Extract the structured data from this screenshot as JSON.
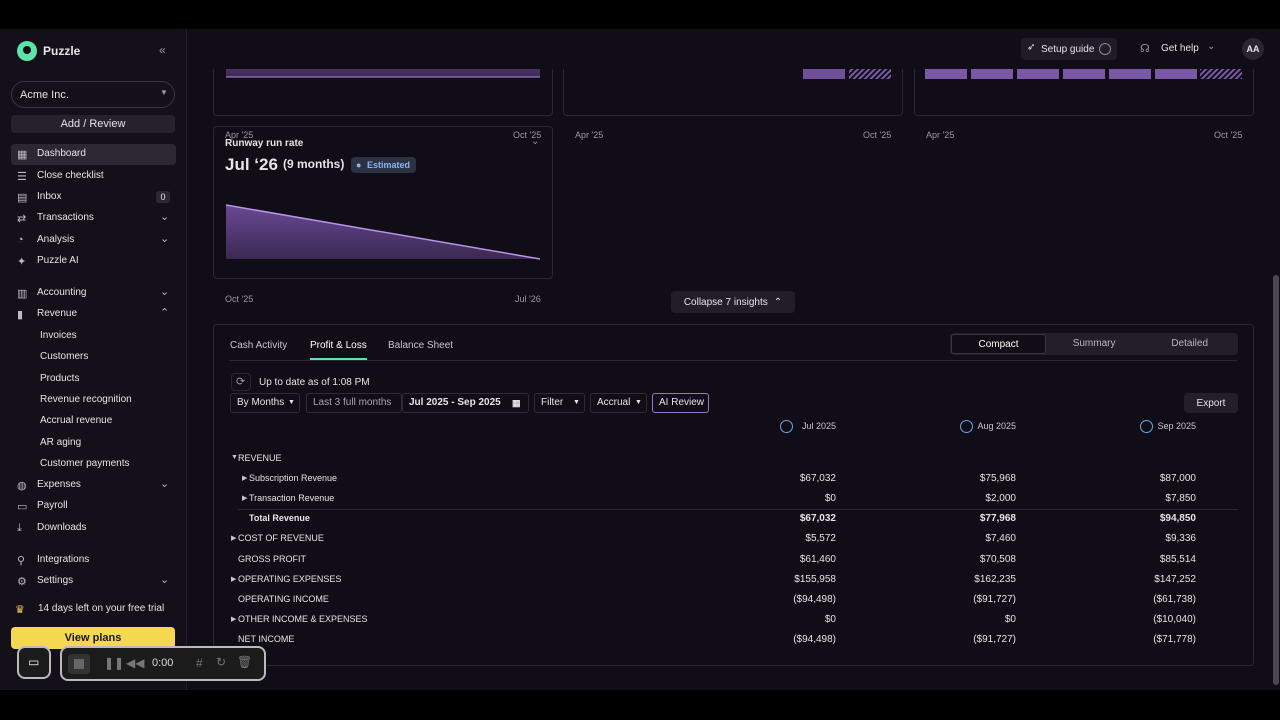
{
  "sidebar": {
    "brand": "Puzzle",
    "company": "Acme Inc.",
    "add_review": "Add / Review",
    "nav": [
      {
        "label": "Dashboard"
      },
      {
        "label": "Close checklist"
      },
      {
        "label": "Inbox",
        "badge": "0"
      },
      {
        "label": "Transactions"
      },
      {
        "label": "Analysis"
      },
      {
        "label": "Puzzle AI"
      },
      {
        "label": "Accounting"
      },
      {
        "label": "Revenue",
        "children": [
          "Invoices",
          "Customers",
          "Products",
          "Revenue recognition",
          "Accrual revenue",
          "AR aging",
          "Customer payments"
        ]
      },
      {
        "label": "Expenses"
      },
      {
        "label": "Payroll"
      },
      {
        "label": "Downloads"
      },
      {
        "label": "Integrations"
      },
      {
        "label": "Settings"
      }
    ],
    "trial": "14 days left on your free trial",
    "view_plans": "View plans"
  },
  "topbar": {
    "setup_guide": "Setup guide",
    "get_help": "Get help",
    "avatar": "AA"
  },
  "cards": [
    {
      "axis": [
        "Apr '25",
        "Oct '25"
      ]
    },
    {
      "axis": [
        "Apr '25",
        "Oct '25"
      ]
    },
    {
      "axis": [
        "Apr '25",
        "Oct '25"
      ]
    }
  ],
  "runway": {
    "title": "Runway run rate",
    "value": "Jul ‘26",
    "detail": "(9 months)",
    "badge": "Estimated",
    "axis": [
      "Oct '25",
      "Jul '26"
    ]
  },
  "collapse": "Collapse 7 insights",
  "report": {
    "tabs": [
      "Cash Activity",
      "Profit & Loss",
      "Balance Sheet"
    ],
    "views": [
      "Compact",
      "Summary",
      "Detailed"
    ],
    "status": "Up to date as of 1:08 PM",
    "toolbar": [
      "By Months",
      "Last 3 full months",
      "Jul 2025 - Sep 2025",
      "Filter",
      "Accrual",
      "AI Review"
    ],
    "export": "Export",
    "columns": [
      "Jul 2025",
      "Aug 2025",
      "Sep 2025"
    ],
    "sections": [
      {
        "label": "REVENUE",
        "rows": [
          {
            "label": "Subscription Revenue",
            "values": [
              "$67,032",
              "$75,968",
              "$87,000"
            ]
          },
          {
            "label": "Transaction Revenue",
            "values": [
              "$0",
              "$2,000",
              "$7,850"
            ]
          },
          {
            "label": "Total Revenue",
            "values": [
              "$67,032",
              "$77,968",
              "$94,850"
            ]
          }
        ]
      },
      {
        "label": "COST OF REVENUE",
        "values": [
          "$5,572",
          "$7,460",
          "$9,336"
        ]
      },
      {
        "label": "GROSS PROFIT",
        "values": [
          "$61,460",
          "$70,508",
          "$85,514"
        ]
      },
      {
        "label": "OPERATING EXPENSES",
        "values": [
          "$155,958",
          "$162,235",
          "$147,252"
        ]
      },
      {
        "label": "OPERATING INCOME",
        "values": [
          "($94,498)",
          "($91,727)",
          "($61,738)"
        ]
      },
      {
        "label": "OTHER INCOME & EXPENSES",
        "values": [
          "$0",
          "$0",
          "($10,040)"
        ]
      },
      {
        "label": "NET INCOME",
        "values": [
          "($94,498)",
          "($91,727)",
          "($71,778)"
        ]
      }
    ]
  },
  "recorder": {
    "time": "0:00"
  }
}
